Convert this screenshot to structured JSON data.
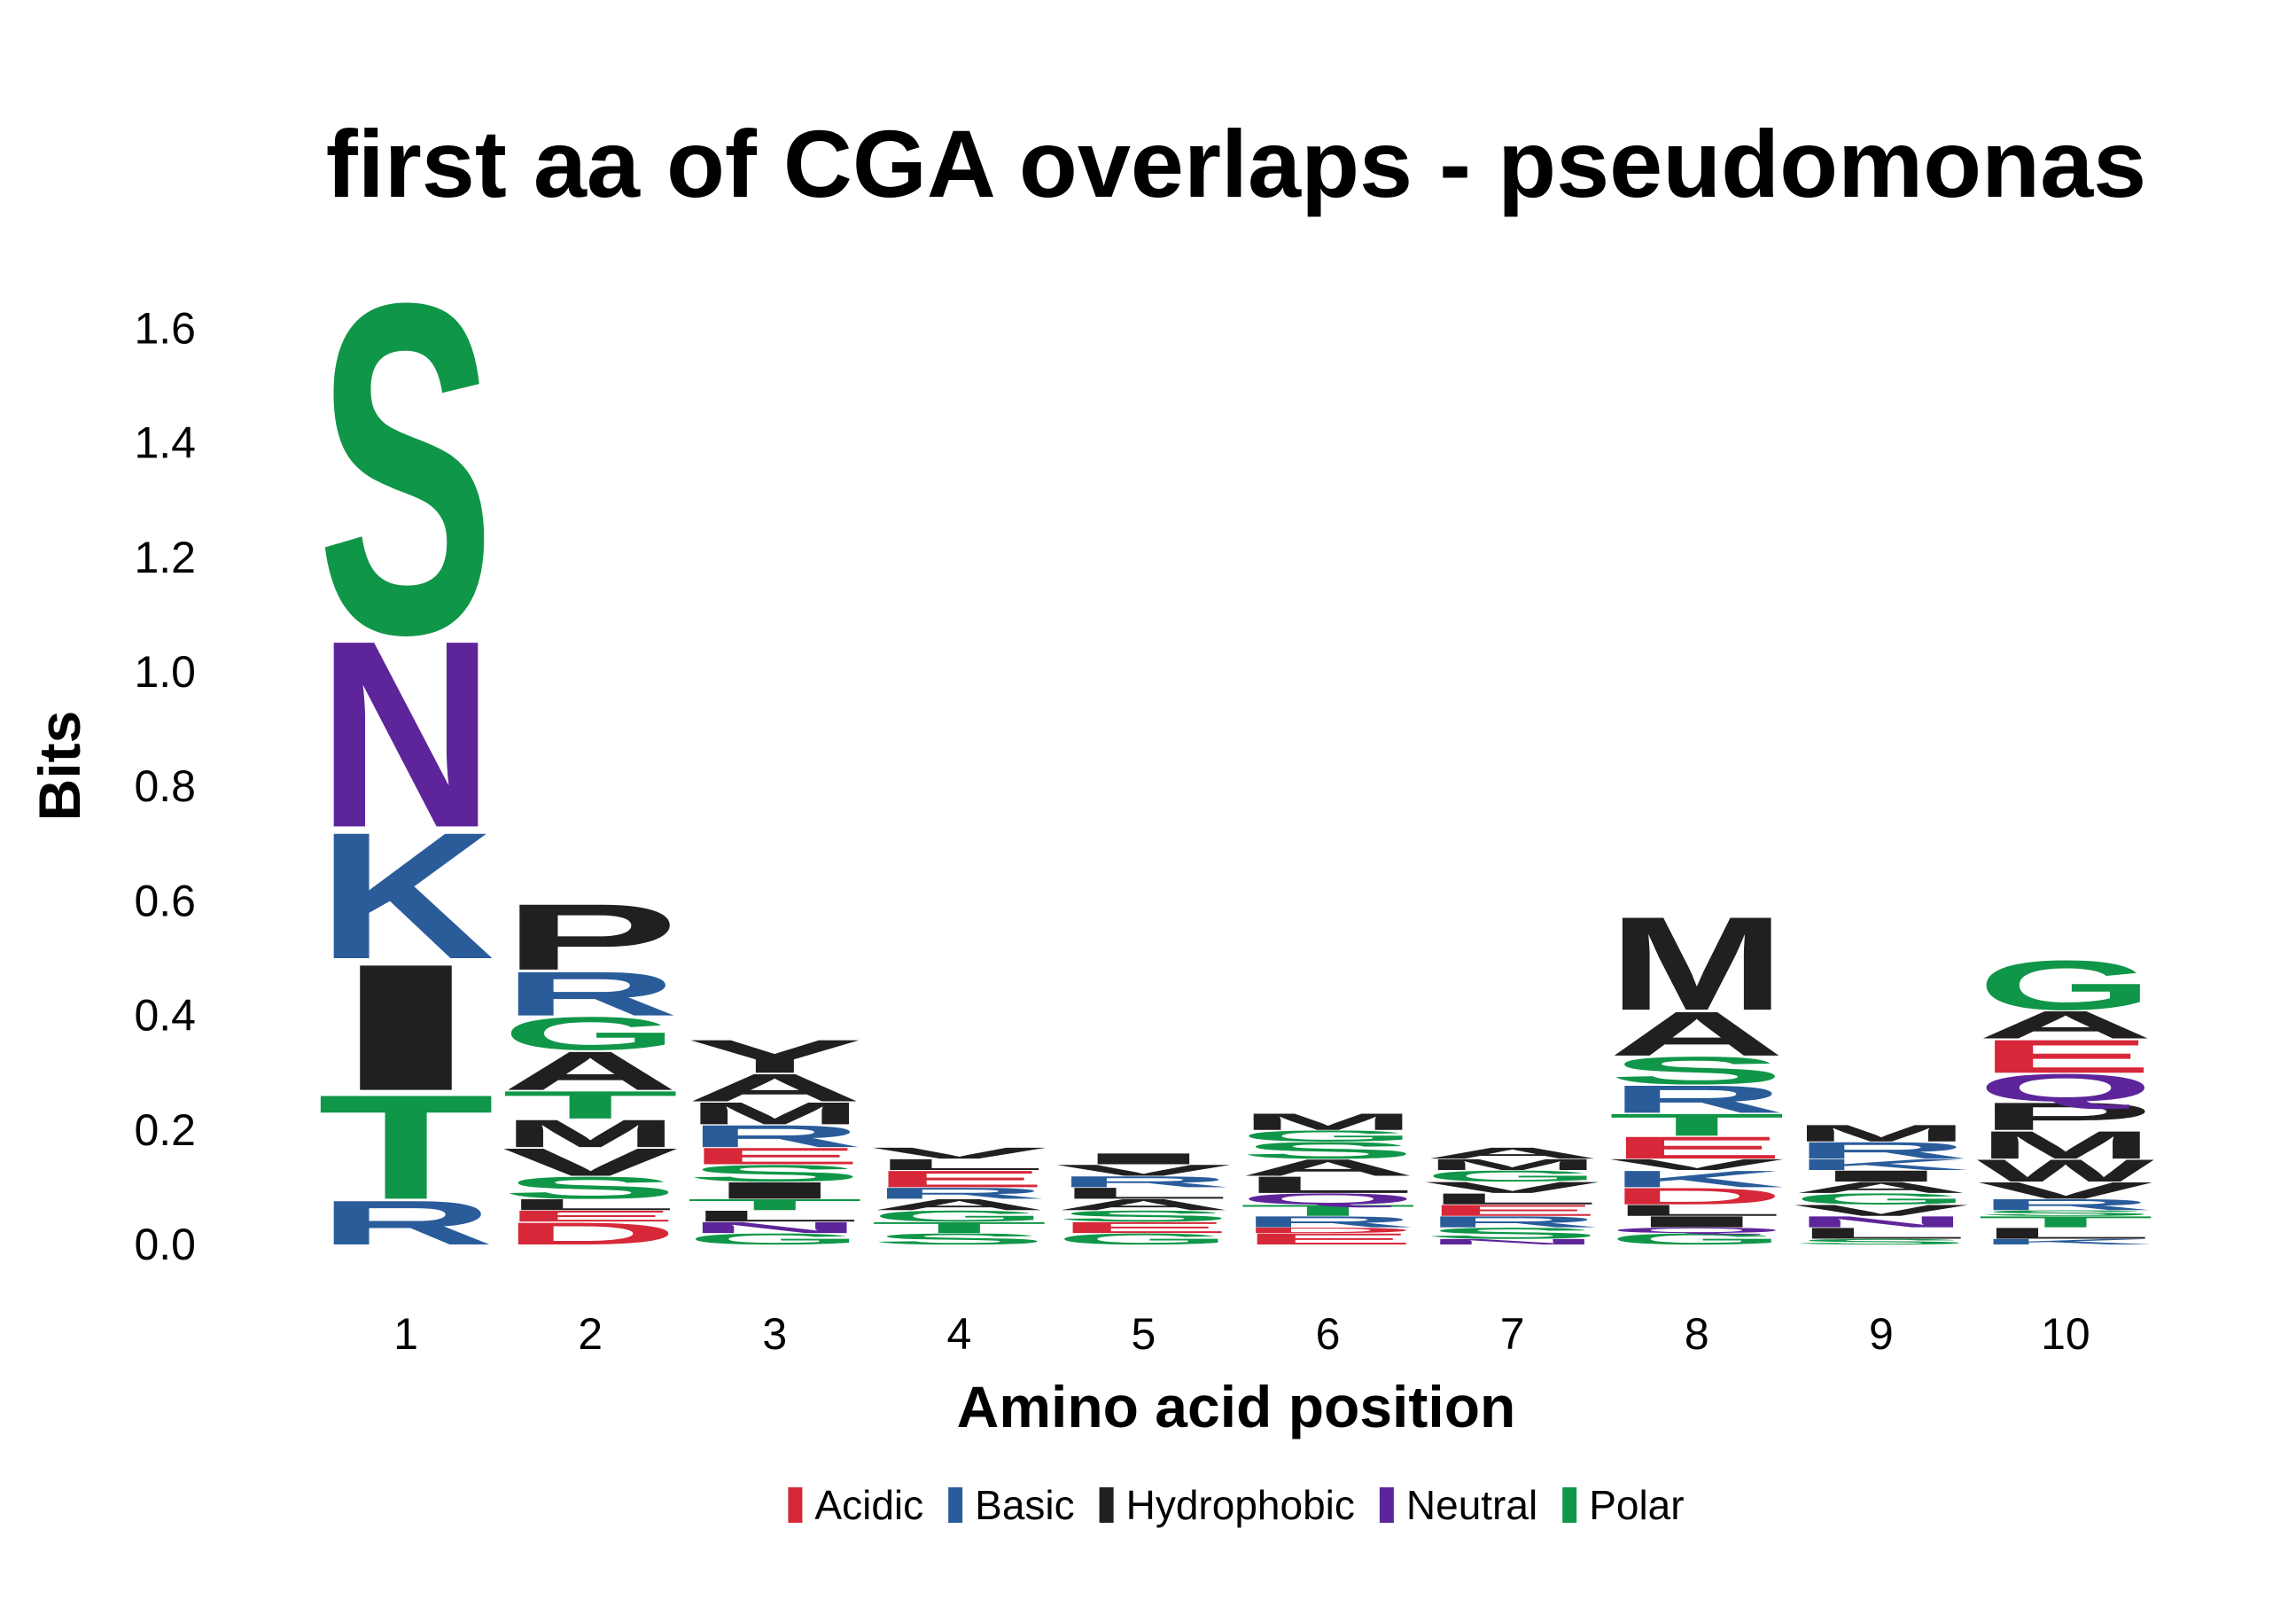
{
  "chart_data": {
    "type": "logo",
    "title": "first aa of CGA overlaps - pseudomonas",
    "xlabel": "Amino acid position",
    "ylabel": "Bits",
    "categories": [
      "1",
      "2",
      "3",
      "4",
      "5",
      "6",
      "7",
      "8",
      "9",
      "10"
    ],
    "ylim": [
      0,
      1.7
    ],
    "yticks": [
      {
        "value": 0,
        "label": "0.0"
      },
      0.2,
      0.4,
      0.6,
      0.8,
      {
        "value": 1,
        "label": "1.0"
      },
      1.2,
      1.4,
      1.6
    ],
    "series": [
      {
        "name": "Acidic",
        "color": "#d62839"
      },
      {
        "name": "Basic",
        "color": "#2a5c9a"
      },
      {
        "name": "Hydrophobic",
        "color": "#221f20"
      },
      {
        "name": "Neutral",
        "color": "#5e259b"
      },
      {
        "name": "Polar",
        "color": "#109648"
      }
    ],
    "stacks": [
      [
        {
          "letter": "R",
          "class": "Basic",
          "value": 0.08
        },
        {
          "letter": "T",
          "class": "Polar",
          "value": 0.19
        },
        {
          "letter": "I",
          "class": "Hydrophobic",
          "value": 0.23
        },
        {
          "letter": "K",
          "class": "Basic",
          "value": 0.23
        },
        {
          "letter": "N",
          "class": "Neutral",
          "value": 0.34
        },
        {
          "letter": "S",
          "class": "Polar",
          "value": 0.6
        }
      ],
      [
        {
          "letter": "D",
          "class": "Acidic",
          "value": 0.04
        },
        {
          "letter": "E",
          "class": "Acidic",
          "value": 0.02
        },
        {
          "letter": "L",
          "class": "Hydrophobic",
          "value": 0.02
        },
        {
          "letter": "S",
          "class": "Polar",
          "value": 0.04
        },
        {
          "letter": "V",
          "class": "Hydrophobic",
          "value": 0.05
        },
        {
          "letter": "M",
          "class": "Hydrophobic",
          "value": 0.05
        },
        {
          "letter": "T",
          "class": "Polar",
          "value": 0.05
        },
        {
          "letter": "A",
          "class": "Hydrophobic",
          "value": 0.07
        },
        {
          "letter": "G",
          "class": "Polar",
          "value": 0.06
        },
        {
          "letter": "R",
          "class": "Basic",
          "value": 0.08
        },
        {
          "letter": "P",
          "class": "Hydrophobic",
          "value": 0.12
        }
      ],
      [
        {
          "letter": "G",
          "class": "Polar",
          "value": 0.02
        },
        {
          "letter": "N",
          "class": "Neutral",
          "value": 0.02
        },
        {
          "letter": "L",
          "class": "Hydrophobic",
          "value": 0.02
        },
        {
          "letter": "T",
          "class": "Polar",
          "value": 0.02
        },
        {
          "letter": "I",
          "class": "Hydrophobic",
          "value": 0.03
        },
        {
          "letter": "S",
          "class": "Polar",
          "value": 0.03
        },
        {
          "letter": "E",
          "class": "Acidic",
          "value": 0.03
        },
        {
          "letter": "R",
          "class": "Basic",
          "value": 0.04
        },
        {
          "letter": "M",
          "class": "Hydrophobic",
          "value": 0.04
        },
        {
          "letter": "A",
          "class": "Hydrophobic",
          "value": 0.05
        },
        {
          "letter": "Y",
          "class": "Hydrophobic",
          "value": 0.06
        }
      ],
      [
        {
          "letter": "S",
          "class": "Polar",
          "value": 0.02
        },
        {
          "letter": "T",
          "class": "Polar",
          "value": 0.02
        },
        {
          "letter": "G",
          "class": "Polar",
          "value": 0.02
        },
        {
          "letter": "A",
          "class": "Hydrophobic",
          "value": 0.02
        },
        {
          "letter": "R",
          "class": "Basic",
          "value": 0.02
        },
        {
          "letter": "E",
          "class": "Acidic",
          "value": 0.03
        },
        {
          "letter": "L",
          "class": "Hydrophobic",
          "value": 0.02
        },
        {
          "letter": "V",
          "class": "Hydrophobic",
          "value": 0.02
        }
      ],
      [
        {
          "letter": "G",
          "class": "Polar",
          "value": 0.02
        },
        {
          "letter": "E",
          "class": "Acidic",
          "value": 0.02
        },
        {
          "letter": "S",
          "class": "Polar",
          "value": 0.02
        },
        {
          "letter": "A",
          "class": "Hydrophobic",
          "value": 0.02
        },
        {
          "letter": "L",
          "class": "Hydrophobic",
          "value": 0.02
        },
        {
          "letter": "R",
          "class": "Basic",
          "value": 0.02
        },
        {
          "letter": "V",
          "class": "Hydrophobic",
          "value": 0.02
        },
        {
          "letter": "I",
          "class": "Hydrophobic",
          "value": 0.02
        }
      ],
      [
        {
          "letter": "E",
          "class": "Acidic",
          "value": 0.02
        },
        {
          "letter": "D",
          "class": "Acidic",
          "value": 0.01
        },
        {
          "letter": "R",
          "class": "Basic",
          "value": 0.02
        },
        {
          "letter": "T",
          "class": "Polar",
          "value": 0.02
        },
        {
          "letter": "Q",
          "class": "Neutral",
          "value": 0.02
        },
        {
          "letter": "L",
          "class": "Hydrophobic",
          "value": 0.03
        },
        {
          "letter": "A",
          "class": "Hydrophobic",
          "value": 0.03
        },
        {
          "letter": "S",
          "class": "Polar",
          "value": 0.03
        },
        {
          "letter": "G",
          "class": "Polar",
          "value": 0.02
        },
        {
          "letter": "M",
          "class": "Hydrophobic",
          "value": 0.03
        }
      ],
      [
        {
          "letter": "N",
          "class": "Neutral",
          "value": 0.01
        },
        {
          "letter": "S",
          "class": "Polar",
          "value": 0.02
        },
        {
          "letter": "R",
          "class": "Basic",
          "value": 0.02
        },
        {
          "letter": "E",
          "class": "Acidic",
          "value": 0.02
        },
        {
          "letter": "L",
          "class": "Hydrophobic",
          "value": 0.02
        },
        {
          "letter": "V",
          "class": "Hydrophobic",
          "value": 0.02
        },
        {
          "letter": "G",
          "class": "Polar",
          "value": 0.02
        },
        {
          "letter": "M",
          "class": "Hydrophobic",
          "value": 0.02
        },
        {
          "letter": "A",
          "class": "Hydrophobic",
          "value": 0.02
        }
      ],
      [
        {
          "letter": "G",
          "class": "Polar",
          "value": 0.02
        },
        {
          "letter": "Q",
          "class": "Neutral",
          "value": 0.01
        },
        {
          "letter": "I",
          "class": "Hydrophobic",
          "value": 0.02
        },
        {
          "letter": "L",
          "class": "Hydrophobic",
          "value": 0.02
        },
        {
          "letter": "D",
          "class": "Acidic",
          "value": 0.03
        },
        {
          "letter": "K",
          "class": "Basic",
          "value": 0.03
        },
        {
          "letter": "V",
          "class": "Hydrophobic",
          "value": 0.02
        },
        {
          "letter": "E",
          "class": "Acidic",
          "value": 0.04
        },
        {
          "letter": "T",
          "class": "Polar",
          "value": 0.04
        },
        {
          "letter": "R",
          "class": "Basic",
          "value": 0.05
        },
        {
          "letter": "S",
          "class": "Polar",
          "value": 0.05
        },
        {
          "letter": "A",
          "class": "Hydrophobic",
          "value": 0.08
        },
        {
          "letter": "M",
          "class": "Hydrophobic",
          "value": 0.17
        }
      ],
      [
        {
          "letter": "S",
          "class": "Polar",
          "value": 0.01
        },
        {
          "letter": "L",
          "class": "Hydrophobic",
          "value": 0.02
        },
        {
          "letter": "N",
          "class": "Neutral",
          "value": 0.02
        },
        {
          "letter": "V",
          "class": "Hydrophobic",
          "value": 0.02
        },
        {
          "letter": "G",
          "class": "Polar",
          "value": 0.02
        },
        {
          "letter": "A",
          "class": "Hydrophobic",
          "value": 0.02
        },
        {
          "letter": "I",
          "class": "Hydrophobic",
          "value": 0.02
        },
        {
          "letter": "K",
          "class": "Basic",
          "value": 0.02
        },
        {
          "letter": "R",
          "class": "Basic",
          "value": 0.03
        },
        {
          "letter": "M",
          "class": "Hydrophobic",
          "value": 0.03
        }
      ],
      [
        {
          "letter": "K",
          "class": "Basic",
          "value": 0.01
        },
        {
          "letter": "L",
          "class": "Hydrophobic",
          "value": 0.02
        },
        {
          "letter": "T",
          "class": "Polar",
          "value": 0.02
        },
        {
          "letter": "S",
          "class": "Polar",
          "value": 0.01
        },
        {
          "letter": "R",
          "class": "Basic",
          "value": 0.02
        },
        {
          "letter": "V",
          "class": "Hydrophobic",
          "value": 0.03
        },
        {
          "letter": "W",
          "class": "Hydrophobic",
          "value": 0.04
        },
        {
          "letter": "M",
          "class": "Hydrophobic",
          "value": 0.05
        },
        {
          "letter": "P",
          "class": "Hydrophobic",
          "value": 0.05
        },
        {
          "letter": "Q",
          "class": "Neutral",
          "value": 0.05
        },
        {
          "letter": "E",
          "class": "Acidic",
          "value": 0.06
        },
        {
          "letter": "A",
          "class": "Hydrophobic",
          "value": 0.05
        },
        {
          "letter": "G",
          "class": "Polar",
          "value": 0.09
        }
      ]
    ]
  }
}
